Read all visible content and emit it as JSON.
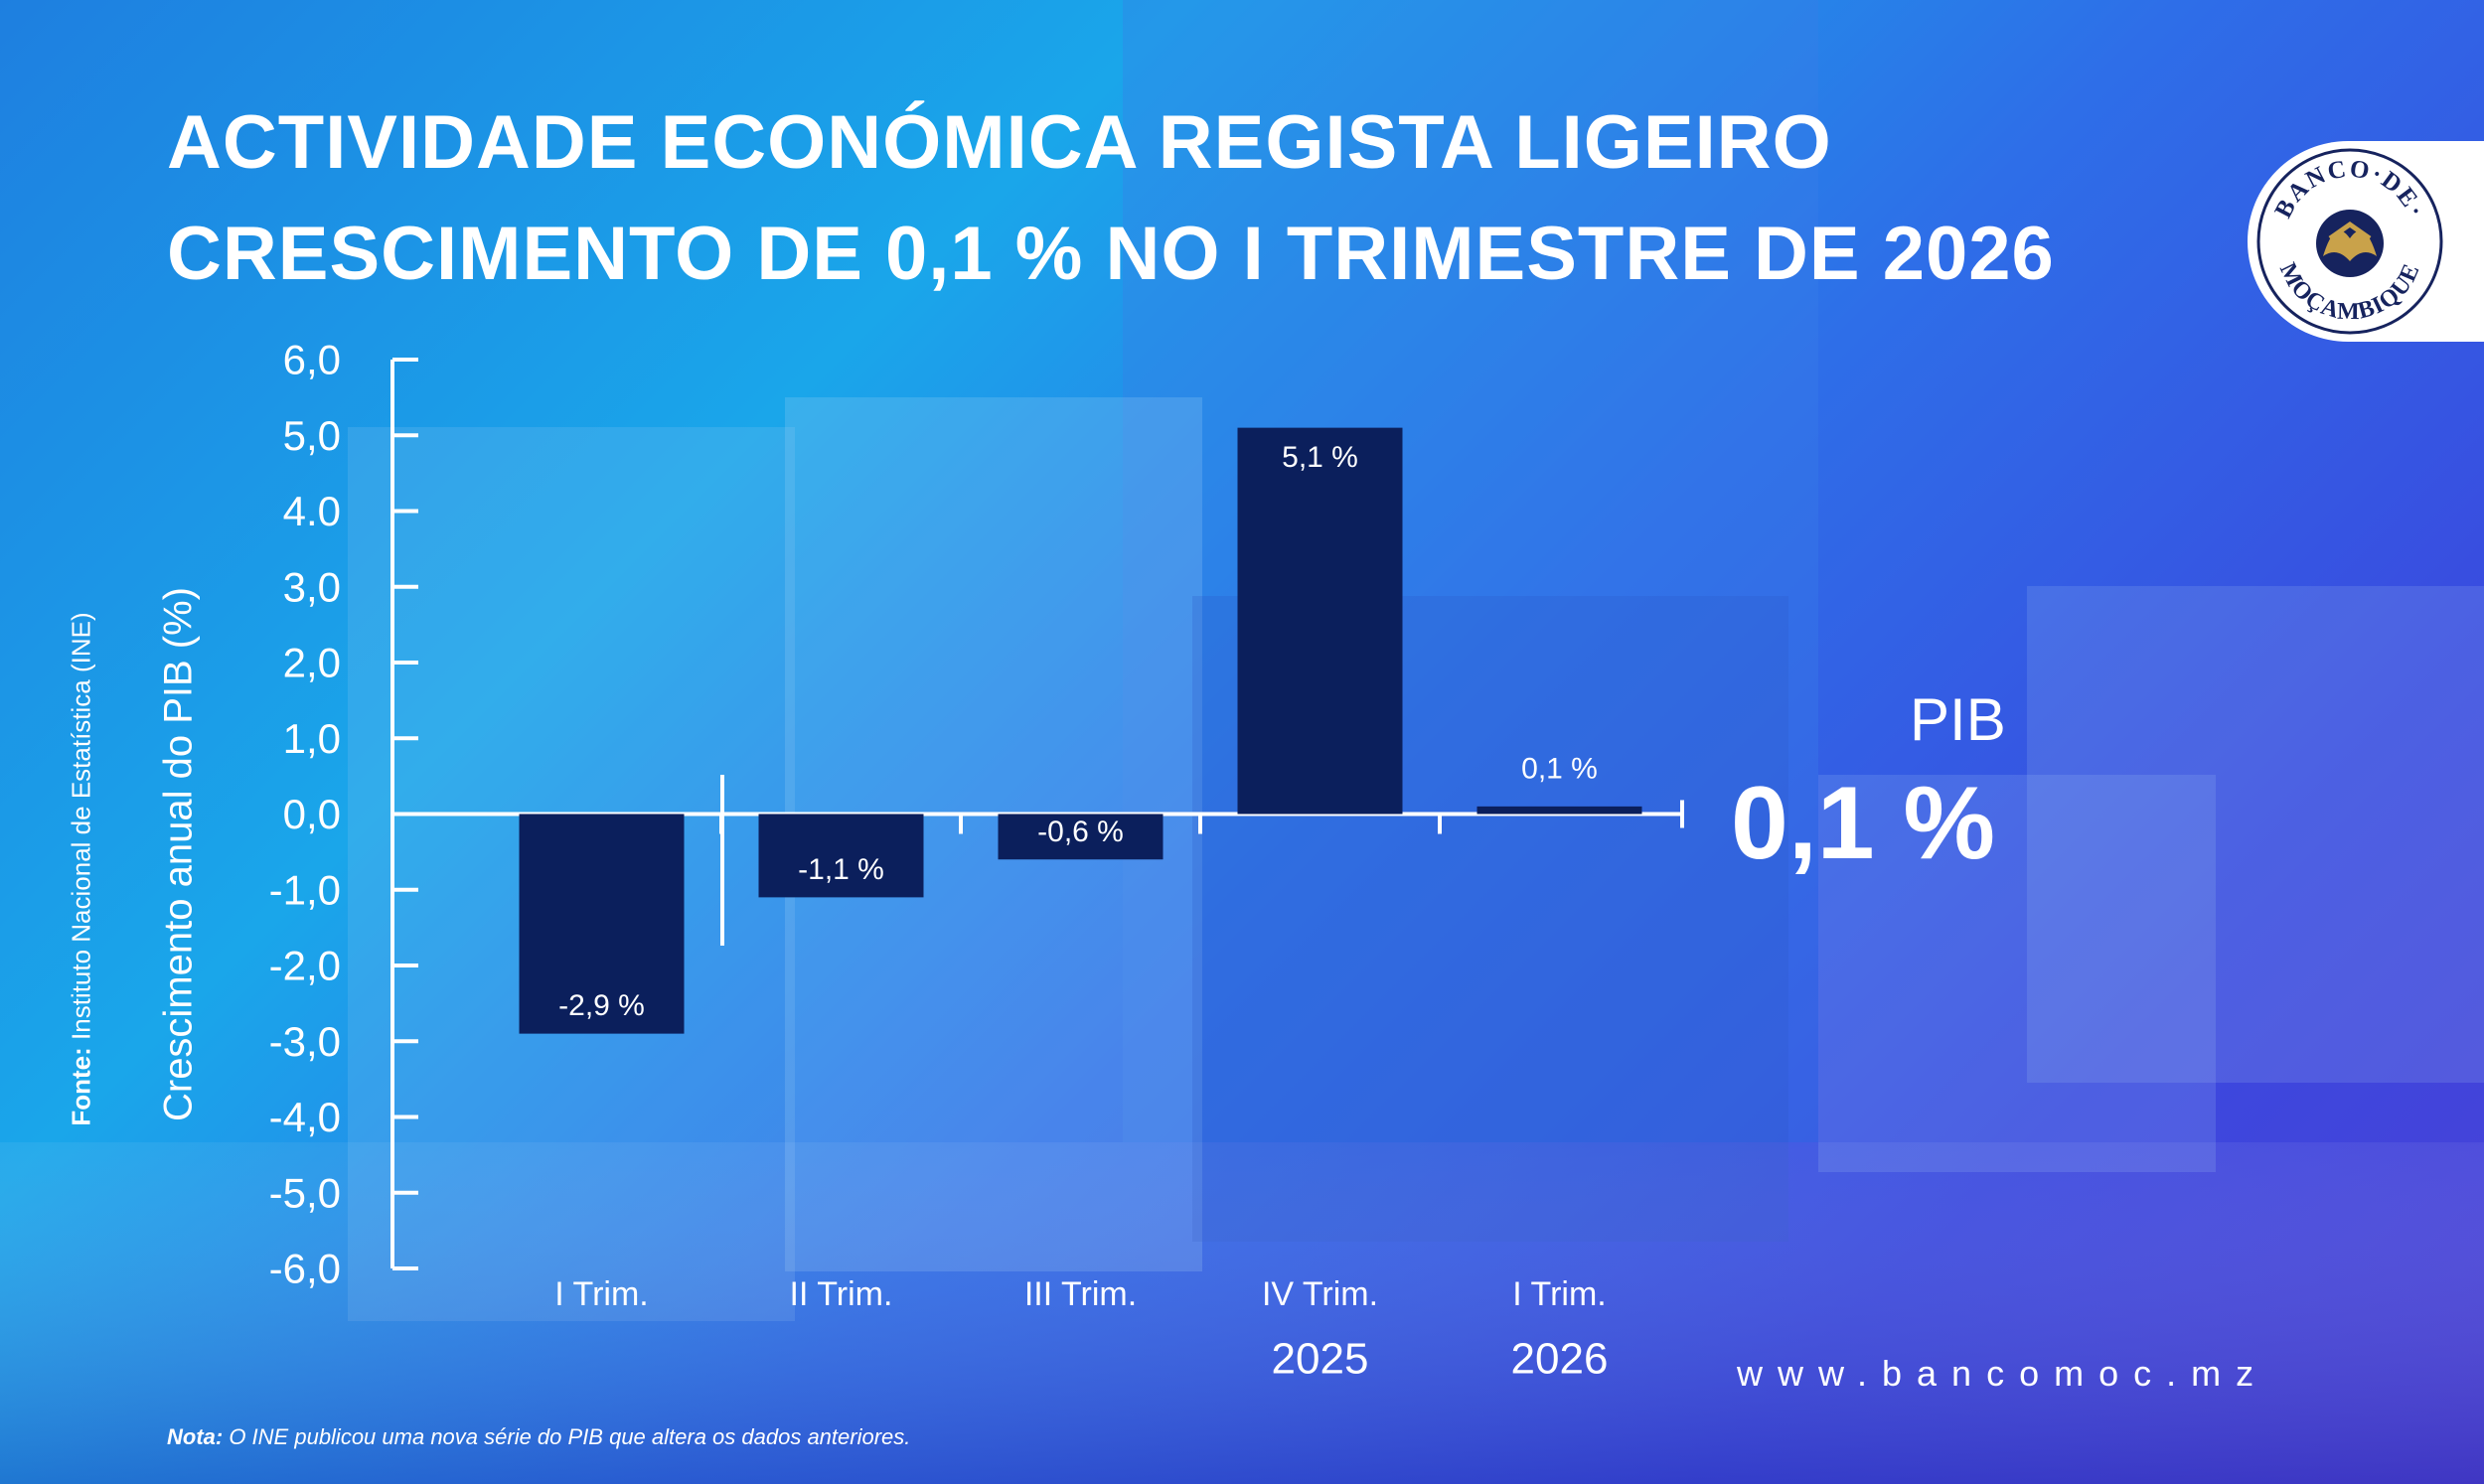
{
  "title_lines": [
    "ACTIVIDADE ECONÓMICA REGISTA LIGEIRO",
    "CRESCIMENTO DE 0,1 % NO I TRIMESTRE DE 2026"
  ],
  "logo": {
    "top_text": "BANCO·DE·",
    "bottom_text": "MOÇAMBIQUE",
    "icon": "bank-emblem-icon"
  },
  "source": {
    "label": "Fonte:",
    "text": " Instituto Nacional de Estatística (INE)"
  },
  "highlight": {
    "label": "PIB",
    "value": "0,1 %"
  },
  "website": "www.bancomoc.mz",
  "note": {
    "label": "Nota:",
    "text": " O INE publicou uma nova série do PIB que altera os dados anteriores."
  },
  "colors": {
    "bar": "#0b1f5c",
    "axis": "#ffffff",
    "text": "#ffffff"
  },
  "chart_data": {
    "type": "bar",
    "ylabel": "Crescimento anual do PIB (%)",
    "ylim": [
      -6,
      6
    ],
    "yticks": [
      6,
      5,
      4,
      3,
      2,
      1,
      0,
      -1,
      -2,
      -3,
      -4,
      -5,
      -6
    ],
    "ytick_labels": [
      "6,0",
      "5,0",
      "4.0",
      "3,0",
      "2,0",
      "1,0",
      "0,0",
      "-1,0",
      "-2,0",
      "-3,0",
      "-4,0",
      "-5,0",
      "-6,0"
    ],
    "categories": [
      "I Trim.",
      "II Trim.",
      "III Trim.",
      "IV Trim.",
      "I Trim."
    ],
    "values": [
      -2.9,
      -1.1,
      -0.6,
      5.1,
      0.1
    ],
    "value_labels": [
      "-2,9 %",
      "-1,1 %",
      "-0,6 %",
      "5,1 %",
      "0,1 %"
    ],
    "year_labels": [
      {
        "text": "2025",
        "category_index": 3
      },
      {
        "text": "2026",
        "category_index": 4
      }
    ],
    "grid": false
  }
}
